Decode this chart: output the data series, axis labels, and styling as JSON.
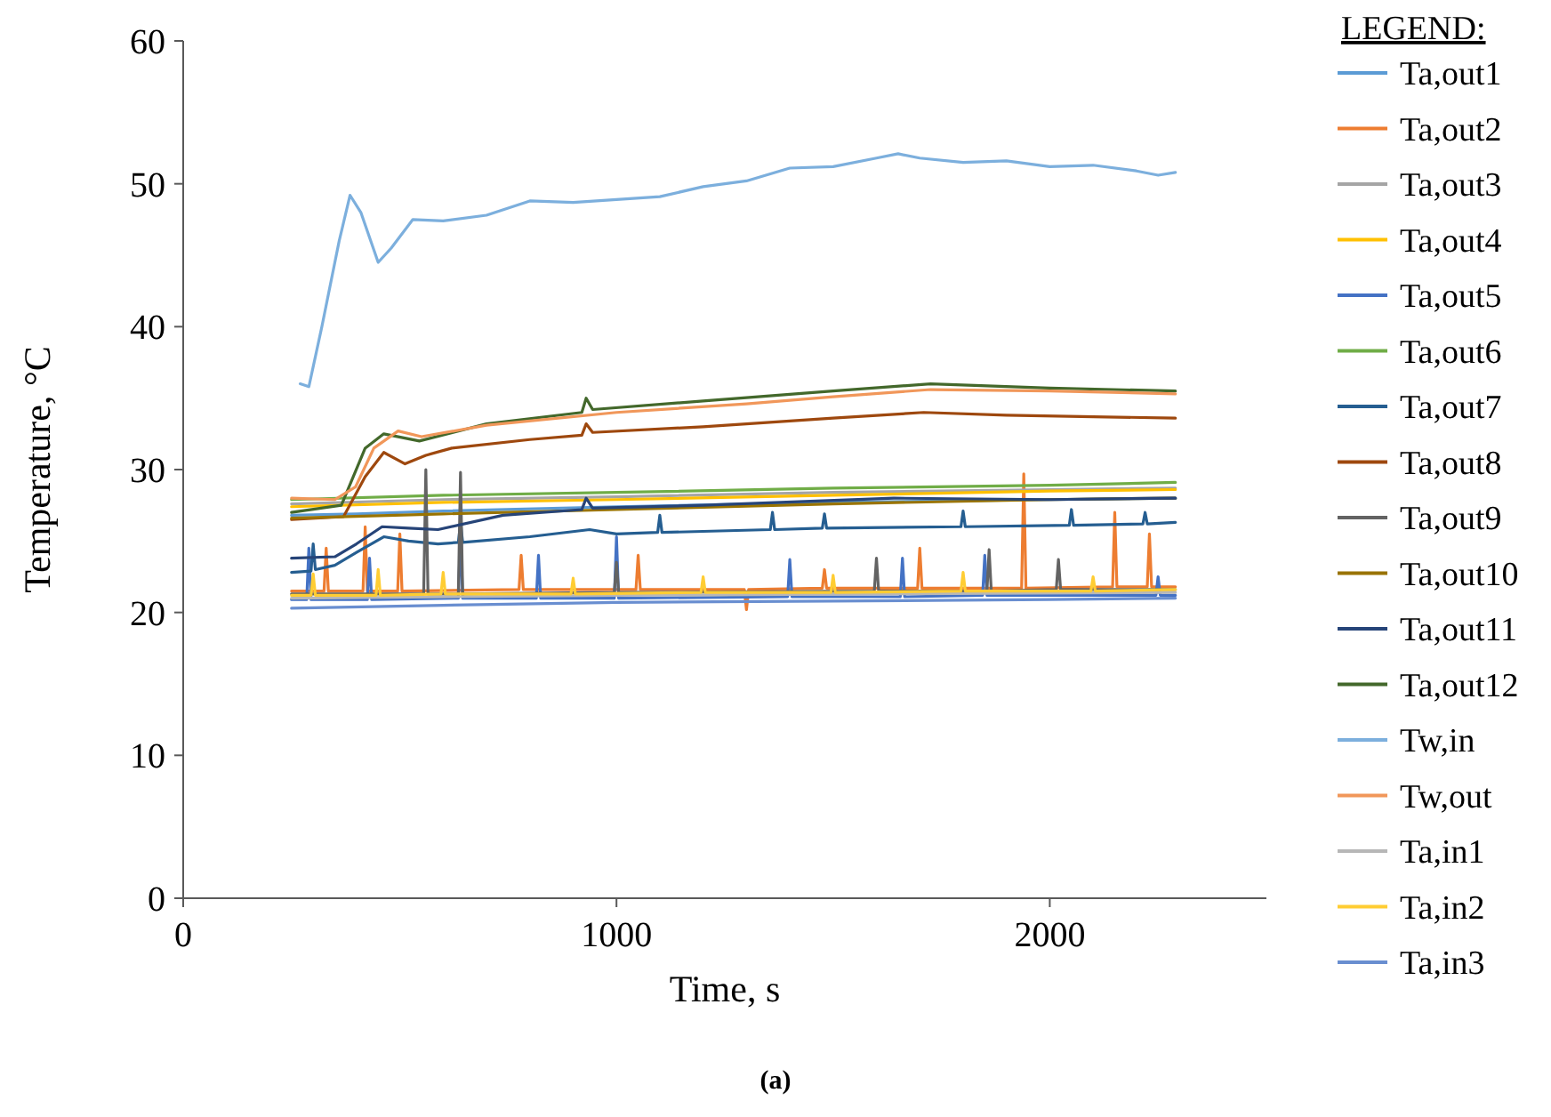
{
  "chart_data": {
    "type": "line",
    "xlabel": "Time, s",
    "ylabel": "Temperature, °C",
    "legend_title": "LEGEND:",
    "legend": "right",
    "grid": false,
    "line_style": "solid",
    "xlim": [
      0,
      2500
    ],
    "xticks": [
      0,
      1000,
      2000
    ],
    "ylim": [
      0,
      60
    ],
    "yticks": [
      0,
      10,
      20,
      30,
      40,
      50,
      60
    ],
    "annotations": [
      "(a)"
    ],
    "series": [
      {
        "name": "Ta,out1",
        "color": "#5b9bd5",
        "x": [
          250,
          400,
          600,
          1000,
          1500,
          2000,
          2290
        ],
        "values": [
          26.8,
          26.9,
          27.1,
          27.4,
          27.7,
          27.9,
          28.0
        ]
      },
      {
        "name": "Ta,out2",
        "color": "#ed7d31",
        "x": [
          250,
          325,
          330,
          335,
          415,
          420,
          425,
          495,
          500,
          505,
          775,
          780,
          785,
          1045,
          1050,
          1055,
          1295,
          1300,
          1305,
          1475,
          1480,
          1485,
          1695,
          1700,
          1705,
          1935,
          1940,
          1945,
          2145,
          2150,
          2155,
          2225,
          2230,
          2235,
          2290
        ],
        "values": [
          21.5,
          21.5,
          24.5,
          21.5,
          21.5,
          26,
          21.5,
          21.5,
          25.5,
          21.5,
          21.6,
          24,
          21.6,
          21.6,
          24,
          21.6,
          21.6,
          20.2,
          21.6,
          21.7,
          23,
          21.7,
          21.7,
          24.5,
          21.7,
          21.7,
          29.7,
          21.7,
          21.8,
          27,
          21.8,
          21.8,
          25.5,
          21.8,
          21.8
        ]
      },
      {
        "name": "Ta,out3",
        "color": "#a5a5a5",
        "x": [
          250,
          600,
          1000,
          1500,
          2000,
          2290
        ],
        "values": [
          27.6,
          27.9,
          28.1,
          28.4,
          28.6,
          28.7
        ]
      },
      {
        "name": "Ta,out4",
        "color": "#ffc000",
        "x": [
          250,
          600,
          1000,
          1500,
          2000,
          2290
        ],
        "values": [
          27.4,
          27.7,
          27.9,
          28.2,
          28.5,
          28.6
        ]
      },
      {
        "name": "Ta,out5",
        "color": "#4472c4",
        "x": [
          250,
          285,
          290,
          295,
          425,
          430,
          435,
          635,
          640,
          645,
          815,
          820,
          825,
          995,
          1000,
          1005,
          1395,
          1400,
          1405,
          1655,
          1660,
          1665,
          1845,
          1850,
          1855,
          2245,
          2250,
          2255,
          2290
        ],
        "values": [
          20.9,
          20.9,
          24.5,
          20.9,
          20.9,
          23.8,
          20.9,
          21,
          25.6,
          21,
          21,
          24,
          21,
          21,
          25.3,
          21,
          21.1,
          23.7,
          21.1,
          21.1,
          23.8,
          21.1,
          21.2,
          24,
          21.2,
          21.2,
          22.5,
          21.2,
          21.2
        ]
      },
      {
        "name": "Ta,out6",
        "color": "#70ad47",
        "x": [
          250,
          600,
          1000,
          1500,
          2000,
          2290
        ],
        "values": [
          27.9,
          28.2,
          28.4,
          28.7,
          28.9,
          29.1
        ]
      },
      {
        "name": "Ta,out7",
        "color": "#255e91",
        "x": [
          250,
          295,
          300,
          305,
          350,
          400,
          463,
          520,
          588,
          635,
          640,
          645,
          800,
          938,
          1000,
          1095,
          1100,
          1105,
          1355,
          1360,
          1365,
          1475,
          1480,
          1485,
          1795,
          1800,
          1805,
          2045,
          2050,
          2055,
          2215,
          2220,
          2225,
          2290
        ],
        "values": [
          22.8,
          22.9,
          24.8,
          23,
          23.3,
          24.2,
          25.3,
          25,
          24.8,
          24.9,
          26.3,
          24.9,
          25.3,
          25.8,
          25.5,
          25.6,
          26.8,
          25.6,
          25.8,
          27,
          25.8,
          25.9,
          26.9,
          25.9,
          26,
          27.1,
          26,
          26.1,
          27.2,
          26.1,
          26.2,
          27,
          26.2,
          26.3
        ]
      },
      {
        "name": "Ta,out8",
        "color": "#9e480e",
        "x": [
          250,
          370,
          420,
          463,
          512,
          560,
          620,
          800,
          920,
          930,
          945,
          1200,
          1500,
          1709,
          1900,
          2100,
          2290
        ],
        "values": [
          26.5,
          26.7,
          29.5,
          31.2,
          30.4,
          31,
          31.5,
          32.1,
          32.4,
          33.2,
          32.6,
          33,
          33.6,
          34,
          33.8,
          33.7,
          33.6
        ]
      },
      {
        "name": "Ta,out9",
        "color": "#636363",
        "x": [
          250,
          555,
          560,
          565,
          635,
          640,
          645,
          995,
          1000,
          1005,
          1595,
          1600,
          1605,
          1855,
          1860,
          1865,
          2015,
          2020,
          2025,
          2290
        ],
        "values": [
          21.3,
          21.3,
          30,
          21.3,
          21.3,
          29.8,
          21.3,
          21.4,
          23.5,
          21.4,
          21.5,
          23.8,
          21.5,
          21.5,
          24.4,
          21.5,
          21.6,
          23.7,
          21.6,
          21.6
        ]
      },
      {
        "name": "Ta,out10",
        "color": "#997300",
        "x": [
          250,
          600,
          1000,
          1500,
          2000,
          2290
        ],
        "values": [
          26.6,
          26.9,
          27.2,
          27.6,
          27.9,
          28.0
        ]
      },
      {
        "name": "Ta,out11",
        "color": "#264478",
        "x": [
          250,
          350,
          400,
          459,
          520,
          588,
          738,
          920,
          930,
          945,
          1200,
          1640,
          2000,
          2290
        ],
        "values": [
          23.8,
          23.9,
          24.8,
          26,
          25.9,
          25.8,
          26.8,
          27.2,
          28,
          27.3,
          27.5,
          28,
          27.9,
          28
        ]
      },
      {
        "name": "Ta,out12",
        "color": "#43682b",
        "x": [
          250,
          365,
          420,
          463,
          545,
          700,
          920,
          930,
          945,
          1200,
          1500,
          1725,
          2000,
          2290
        ],
        "values": [
          27,
          27.5,
          31.5,
          32.5,
          32,
          33.2,
          34,
          35,
          34.2,
          34.8,
          35.5,
          36,
          35.7,
          35.5
        ]
      },
      {
        "name": "Tw,in",
        "color": "#7cafdd",
        "x": [
          270,
          290,
          320,
          360,
          385,
          410,
          450,
          480,
          530,
          600,
          700,
          800,
          900,
          1000,
          1100,
          1200,
          1300,
          1400,
          1500,
          1600,
          1650,
          1700,
          1800,
          1900,
          2000,
          2100,
          2200,
          2250,
          2290
        ],
        "values": [
          36,
          35.8,
          40,
          46,
          49.2,
          48,
          44.5,
          45.5,
          47.5,
          47.4,
          47.8,
          48.8,
          48.7,
          48.9,
          49.1,
          49.8,
          50.2,
          51.1,
          51.2,
          51.8,
          52.1,
          51.8,
          51.5,
          51.6,
          51.2,
          51.3,
          50.9,
          50.6,
          50.8
        ]
      },
      {
        "name": "Tw,out",
        "color": "#f1975a",
        "x": [
          250,
          350,
          398,
          440,
          496,
          550,
          700,
          1000,
          1300,
          1500,
          1725,
          2000,
          2290
        ],
        "values": [
          28,
          27.9,
          28.8,
          31.5,
          32.7,
          32.3,
          33.1,
          34,
          34.6,
          35.1,
          35.6,
          35.5,
          35.3
        ]
      },
      {
        "name": "Ta,in1",
        "color": "#b7b7b7",
        "x": [
          250,
          1000,
          2290
        ],
        "values": [
          21,
          21.2,
          21.4
        ]
      },
      {
        "name": "Ta,in2",
        "color": "#ffcd33",
        "x": [
          250,
          295,
          300,
          305,
          445,
          450,
          455,
          595,
          600,
          605,
          895,
          900,
          905,
          1195,
          1200,
          1205,
          1495,
          1500,
          1505,
          1795,
          1800,
          1805,
          2095,
          2100,
          2105,
          2290
        ],
        "values": [
          21.2,
          21.2,
          22.7,
          21.2,
          21.2,
          23,
          21.2,
          21.3,
          22.8,
          21.3,
          21.3,
          22.4,
          21.3,
          21.4,
          22.5,
          21.4,
          21.4,
          22.6,
          21.4,
          21.5,
          22.8,
          21.5,
          21.5,
          22.5,
          21.5,
          21.6
        ]
      },
      {
        "name": "Ta,in3",
        "color": "#698ed0",
        "x": [
          250,
          600,
          1000,
          1500,
          2000,
          2290
        ],
        "values": [
          20.3,
          20.5,
          20.7,
          20.8,
          20.9,
          21
        ]
      }
    ]
  }
}
